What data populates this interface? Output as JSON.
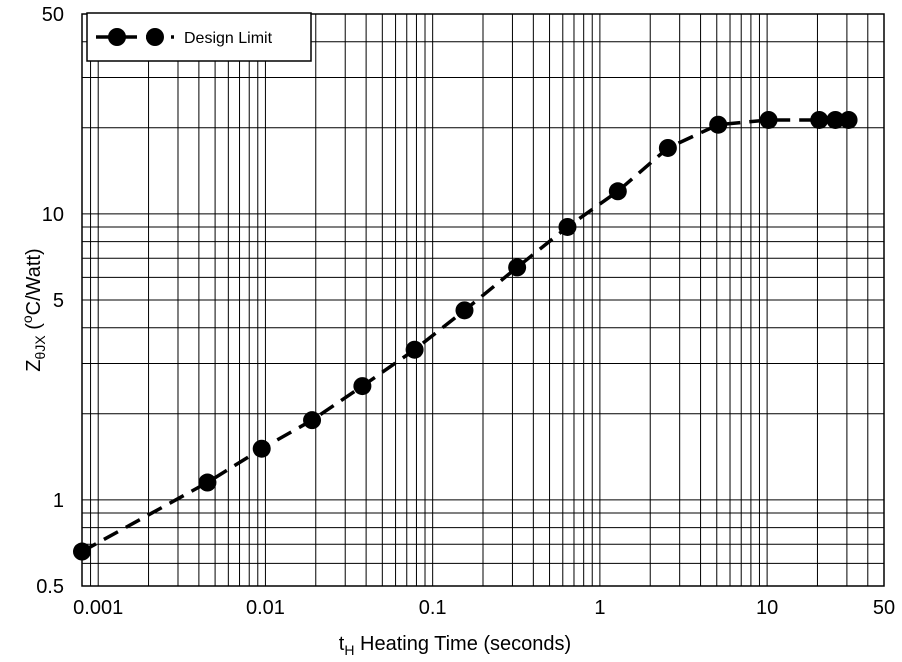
{
  "chart_data": {
    "type": "line",
    "xscale": "log",
    "yscale": "log",
    "xlim": [
      0.0008,
      50
    ],
    "ylim": [
      0.5,
      50
    ],
    "xlabel": {
      "prefix": "t",
      "sub": "H",
      "rest": " Heating Time (seconds)"
    },
    "ylabel": {
      "prefix": "Z",
      "sub": "θJX",
      "mid": "  (",
      "sup": "o",
      "rest": "C/Watt)"
    },
    "x_ticks": [
      {
        "value": 0.001,
        "label": "0.001"
      },
      {
        "value": 0.01,
        "label": "0.01"
      },
      {
        "value": 0.1,
        "label": "0.1"
      },
      {
        "value": 1,
        "label": "1"
      },
      {
        "value": 10,
        "label": "10"
      },
      {
        "value": 50,
        "label": "50"
      }
    ],
    "y_ticks": [
      {
        "value": 0.5,
        "label": "0.5"
      },
      {
        "value": 1,
        "label": "1"
      },
      {
        "value": 5,
        "label": "5"
      },
      {
        "value": 10,
        "label": "10"
      },
      {
        "value": 50,
        "label": "50"
      }
    ],
    "grid": true,
    "legend_position": "top-left",
    "series": [
      {
        "name": "Design Limit",
        "color": "#000000",
        "line_style": "dashed",
        "marker": "circle",
        "x": [
          0.0008,
          0.0045,
          0.0095,
          0.019,
          0.038,
          0.078,
          0.155,
          0.32,
          0.64,
          1.28,
          2.55,
          5.1,
          10.2,
          20.5,
          25.6,
          30.7
        ],
        "y": [
          0.66,
          1.15,
          1.51,
          1.9,
          2.5,
          3.35,
          4.6,
          6.5,
          9.0,
          12.0,
          17.0,
          20.5,
          21.3,
          21.3,
          21.3,
          21.3
        ]
      }
    ]
  }
}
